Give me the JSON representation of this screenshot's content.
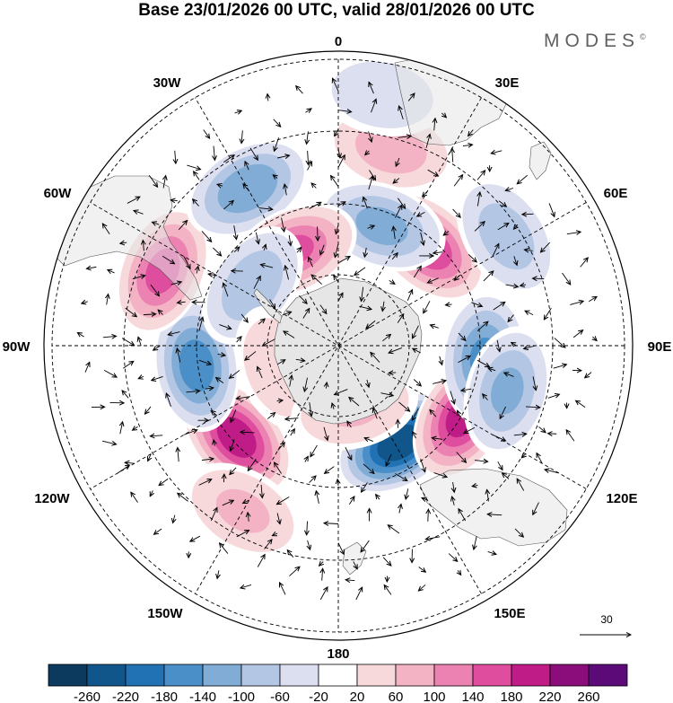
{
  "title": "Base 23/01/2026 00 UTC, valid 28/01/2026 00 UTC",
  "brand": {
    "name": "MODES",
    "mark": "©"
  },
  "longitude_labels": {
    "lon_0": "0",
    "lon_30e": "30E",
    "lon_60e": "60E",
    "lon_90e": "90E",
    "lon_120e": "120E",
    "lon_150e": "150E",
    "lon_180": "180",
    "lon_150w": "150W",
    "lon_120w": "120W",
    "lon_90w": "90W",
    "lon_60w": "60W",
    "lon_30w": "30W"
  },
  "reference_vector": {
    "label": "30"
  },
  "colorbar": {
    "ticks": [
      "-260",
      "-220",
      "-180",
      "-140",
      "-100",
      "-60",
      "-20",
      "20",
      "60",
      "100",
      "140",
      "180",
      "220",
      "260"
    ],
    "colors": [
      "#0b3a5e",
      "#11568a",
      "#2171b5",
      "#4b8fc8",
      "#80acd6",
      "#b3c6e4",
      "#dcdff0",
      "#ffffff",
      "#f7d9dc",
      "#f3b3c5",
      "#ec82b1",
      "#de4d9e",
      "#c01c88",
      "#8b0d7c",
      "#5c0a78"
    ]
  },
  "colors": {
    "land": "#e6e6e6",
    "grid": "#000000"
  },
  "anomaly_centers": [
    {
      "lon": 148,
      "lat": -54,
      "value": -250
    },
    {
      "lon": 120,
      "lat": -45,
      "value": 190
    },
    {
      "lon": -132,
      "lat": -47,
      "value": 200
    },
    {
      "lon": -98,
      "lat": -45,
      "value": -160
    },
    {
      "lon": -67,
      "lat": -30,
      "value": 150
    },
    {
      "lon": -30,
      "lat": -33,
      "value": -130
    },
    {
      "lon": 15,
      "lat": -26,
      "value": 80
    },
    {
      "lon": 42,
      "lat": -48,
      "value": 170
    },
    {
      "lon": 20,
      "lat": -50,
      "value": -110
    },
    {
      "lon": -25,
      "lat": -57,
      "value": 140
    },
    {
      "lon": -55,
      "lat": -57,
      "value": -90
    },
    {
      "lon": 95,
      "lat": -44,
      "value": -140
    },
    {
      "lon": 105,
      "lat": -35,
      "value": -100
    },
    {
      "lon": 57,
      "lat": -27,
      "value": -80
    },
    {
      "lon": -110,
      "lat": -70,
      "value": 40
    },
    {
      "lon": 165,
      "lat": -70,
      "value": 60
    },
    {
      "lon": 10,
      "lat": -10,
      "value": -40
    },
    {
      "lon": -150,
      "lat": -30,
      "value": 60
    }
  ]
}
